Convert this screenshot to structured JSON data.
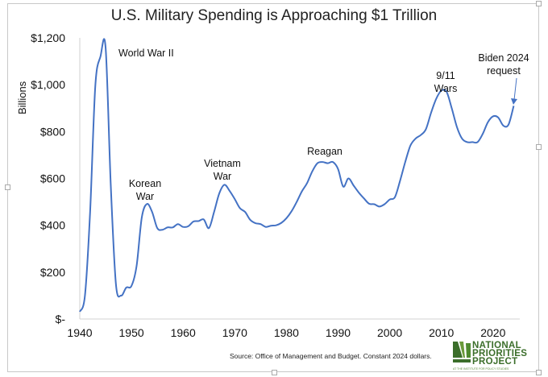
{
  "chart_data": {
    "type": "line",
    "title": "U.S. Military Spending is Approaching $1 Trillion",
    "ylabel": "Billions",
    "xlabel": "",
    "xlim": [
      1940,
      2024
    ],
    "ylim": [
      0,
      1200
    ],
    "x_ticks": [
      1940,
      1950,
      1960,
      1970,
      1980,
      1990,
      2000,
      2010,
      2020
    ],
    "y_ticks": [
      {
        "v": 0,
        "label": "$-"
      },
      {
        "v": 200,
        "label": "$200"
      },
      {
        "v": 400,
        "label": "$400"
      },
      {
        "v": 600,
        "label": "$600"
      },
      {
        "v": 800,
        "label": "$800"
      },
      {
        "v": 1000,
        "label": "$1,000"
      },
      {
        "v": 1200,
        "label": "$1,200"
      }
    ],
    "grid": false,
    "series_color": "#4472c4",
    "x": [
      1940,
      1941,
      1942,
      1943,
      1944,
      1945,
      1946,
      1947,
      1948,
      1949,
      1950,
      1951,
      1952,
      1953,
      1954,
      1955,
      1956,
      1957,
      1958,
      1959,
      1960,
      1961,
      1962,
      1963,
      1964,
      1965,
      1966,
      1967,
      1968,
      1969,
      1970,
      1971,
      1972,
      1973,
      1974,
      1975,
      1976,
      1977,
      1978,
      1979,
      1980,
      1981,
      1982,
      1983,
      1984,
      1985,
      1986,
      1987,
      1988,
      1989,
      1990,
      1991,
      1992,
      1993,
      1994,
      1995,
      1996,
      1997,
      1998,
      1999,
      2000,
      2001,
      2002,
      2003,
      2004,
      2005,
      2006,
      2007,
      2008,
      2009,
      2010,
      2011,
      2012,
      2013,
      2014,
      2015,
      2016,
      2017,
      2018,
      2019,
      2020,
      2021,
      2022,
      2023,
      2024
    ],
    "values": [
      31,
      100,
      457,
      993,
      1120,
      1158,
      570,
      148,
      100,
      134,
      141,
      227,
      433,
      491,
      457,
      388,
      381,
      391,
      391,
      405,
      393,
      396,
      416,
      418,
      425,
      388,
      457,
      536,
      573,
      547,
      512,
      473,
      457,
      423,
      409,
      405,
      393,
      398,
      400,
      410,
      430,
      460,
      500,
      545,
      580,
      630,
      665,
      670,
      665,
      670,
      640,
      565,
      600,
      570,
      540,
      515,
      492,
      490,
      480,
      490,
      510,
      520,
      590,
      670,
      740,
      770,
      785,
      810,
      880,
      940,
      975,
      970,
      900,
      820,
      770,
      755,
      755,
      755,
      790,
      840,
      865,
      860,
      825,
      830,
      910
    ],
    "annotations": [
      {
        "text": [
          "World War II"
        ],
        "x": 1945
      },
      {
        "text": [
          "Korean",
          "War"
        ],
        "x": 1953
      },
      {
        "text": [
          "Vietnam",
          "War"
        ],
        "x": 1968
      },
      {
        "text": [
          "Reagan"
        ],
        "x": 1987
      },
      {
        "text": [
          "9/11",
          "Wars"
        ],
        "x": 2010
      },
      {
        "text": [
          "Biden 2024",
          "request"
        ],
        "x": 2024
      }
    ]
  },
  "source": "Source: Office of Management and Budget. Constant 2024 dollars.",
  "logo": {
    "lines": [
      "NATIONAL",
      "PRIORITIES",
      "PROJECT"
    ],
    "tagline": "AT THE INSTITUTE FOR POLICY STUDIES",
    "color": "#3b6e2a"
  }
}
